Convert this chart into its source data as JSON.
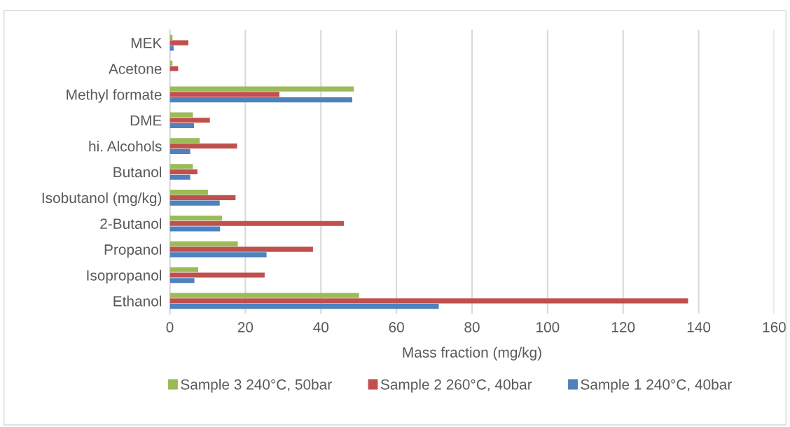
{
  "chart_data": {
    "type": "bar",
    "orientation": "horizontal",
    "categories": [
      "MEK",
      "Acetone",
      "Methyl formate",
      "DME",
      "hi. Alcohols",
      "Butanol",
      "Isobutanol (mg/kg)",
      "2-Butanol",
      "Propanol",
      "Isopropanol",
      "Ethanol"
    ],
    "series": [
      {
        "name": "Sample 3 240°C, 50bar",
        "color": "#9bbb59",
        "values": [
          0.7,
          0.7,
          48.7,
          6.1,
          7.9,
          6.1,
          10.1,
          13.8,
          18.0,
          7.5,
          50.1
        ]
      },
      {
        "name": "Sample 2 260°C, 40bar",
        "color": "#c0504d",
        "values": [
          4.9,
          2.2,
          29.0,
          10.6,
          17.8,
          7.3,
          17.4,
          46.1,
          37.9,
          25.1,
          137.2
        ]
      },
      {
        "name": "Sample 1 240°C, 40bar",
        "color": "#4f81bd",
        "values": [
          1.0,
          null,
          48.3,
          6.4,
          5.4,
          5.4,
          13.2,
          13.3,
          25.6,
          6.5,
          71.2
        ]
      }
    ],
    "xlabel": "Mass fraction (mg/kg)",
    "xlim": [
      0,
      160
    ],
    "xticks": [
      0,
      20,
      40,
      60,
      80,
      100,
      120,
      140,
      160
    ],
    "grid": "x",
    "legend": "bottom"
  }
}
